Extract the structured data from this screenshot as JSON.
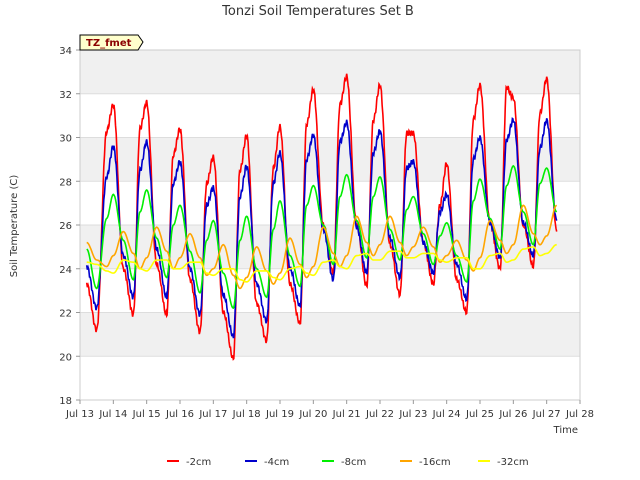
{
  "chart_data": {
    "type": "line",
    "title": "Tonzi Soil Temperatures Set B",
    "xlabel": "Time",
    "ylabel": "Soil Temperature (C)",
    "badge": "TZ_fmet",
    "ylim": [
      18,
      34
    ],
    "xlim": [
      13,
      28
    ],
    "yticks": [
      18,
      20,
      22,
      24,
      26,
      28,
      30,
      32,
      34
    ],
    "xticks": [
      {
        "value": 13,
        "label": "Jul 13"
      },
      {
        "value": 14,
        "label": "Jul 14"
      },
      {
        "value": 15,
        "label": "Jul 15"
      },
      {
        "value": 16,
        "label": "Jul 16"
      },
      {
        "value": 17,
        "label": "Jul 17"
      },
      {
        "value": 18,
        "label": "Jul 18"
      },
      {
        "value": 19,
        "label": "Jul 19"
      },
      {
        "value": 20,
        "label": "Jul 20"
      },
      {
        "value": 21,
        "label": "Jul 21"
      },
      {
        "value": 22,
        "label": "Jul 22"
      },
      {
        "value": 23,
        "label": "Jul 23"
      },
      {
        "value": 24,
        "label": "Jul 24"
      },
      {
        "value": 25,
        "label": "Jul 25"
      },
      {
        "value": 26,
        "label": "Jul 26"
      },
      {
        "value": 27,
        "label": "Jul 27"
      },
      {
        "value": 28,
        "label": "Jul 28"
      }
    ],
    "grid": true,
    "legend_position": "bottom",
    "series": [
      {
        "name": "-2cm",
        "color": "#ff0000",
        "phase": 0.62,
        "x": [
          13.2,
          13.5,
          13.8,
          14.0,
          14.3,
          14.6,
          14.8,
          15.0,
          15.3,
          15.6,
          15.8,
          16.0,
          16.3,
          16.6,
          16.8,
          17.0,
          17.3,
          17.6,
          17.8,
          18.0,
          18.3,
          18.6,
          18.8,
          19.0,
          19.3,
          19.6,
          19.8,
          20.0,
          20.3,
          20.6,
          20.8,
          21.0,
          21.3,
          21.6,
          21.8,
          22.0,
          22.3,
          22.6,
          22.8,
          23.0,
          23.3,
          23.6,
          23.8,
          24.0,
          24.3,
          24.6,
          24.8,
          25.0,
          25.3,
          25.6,
          25.8,
          26.0,
          26.3,
          26.6,
          26.8,
          27.0,
          27.3
        ],
        "y": [
          23.3,
          21.2,
          30.3,
          31.5,
          24.0,
          21.9,
          30.4,
          31.6,
          24.2,
          21.9,
          29.2,
          30.4,
          23.5,
          21.1,
          27.9,
          29.1,
          22.0,
          19.9,
          28.5,
          30.1,
          22.4,
          20.7,
          28.6,
          30.5,
          23.3,
          21.5,
          30.6,
          32.2,
          26.0,
          23.8,
          31.5,
          32.8,
          26.0,
          23.2,
          30.8,
          32.4,
          25.1,
          22.8,
          30.2,
          30.2,
          25.2,
          23.3,
          26.9,
          28.8,
          23.5,
          22.0,
          30.8,
          32.4,
          26.1,
          24.0,
          32.3,
          31.8,
          26.0,
          24.1,
          31.1,
          32.7,
          25.7
        ]
      },
      {
        "name": "-4cm",
        "color": "#0000cc",
        "phase": 0.68,
        "x": [
          13.2,
          13.5,
          13.8,
          14.0,
          14.3,
          14.6,
          14.8,
          15.0,
          15.3,
          15.6,
          15.8,
          16.0,
          16.3,
          16.6,
          16.8,
          17.0,
          17.3,
          17.6,
          17.8,
          18.0,
          18.3,
          18.6,
          18.8,
          19.0,
          19.3,
          19.6,
          19.8,
          20.0,
          20.3,
          20.6,
          20.8,
          21.0,
          21.3,
          21.6,
          21.8,
          22.0,
          22.3,
          22.6,
          22.8,
          23.0,
          23.3,
          23.6,
          23.8,
          24.0,
          24.3,
          24.6,
          24.8,
          25.0,
          25.3,
          25.6,
          25.8,
          26.0,
          26.3,
          26.6,
          26.8,
          27.0,
          27.3
        ],
        "y": [
          24.1,
          22.2,
          28.2,
          29.6,
          24.6,
          22.7,
          28.5,
          29.8,
          24.9,
          22.7,
          27.9,
          28.9,
          24.0,
          21.9,
          26.9,
          27.7,
          22.8,
          20.9,
          27.3,
          28.7,
          23.3,
          21.6,
          27.9,
          29.3,
          24.0,
          22.3,
          29.0,
          30.1,
          25.8,
          23.5,
          29.8,
          30.7,
          25.9,
          23.8,
          29.3,
          30.3,
          25.4,
          23.6,
          28.6,
          28.9,
          25.2,
          23.8,
          26.6,
          27.4,
          24.2,
          22.6,
          29.0,
          30.0,
          26.1,
          24.5,
          29.9,
          30.8,
          26.1,
          24.6,
          29.5,
          30.8,
          26.2
        ]
      },
      {
        "name": "-8cm",
        "color": "#00ee00",
        "phase": 0.78,
        "x": [
          13.2,
          13.5,
          13.8,
          14.0,
          14.3,
          14.6,
          14.8,
          15.0,
          15.3,
          15.6,
          15.8,
          16.0,
          16.3,
          16.6,
          16.8,
          17.0,
          17.3,
          17.6,
          17.8,
          18.0,
          18.3,
          18.6,
          18.8,
          19.0,
          19.3,
          19.6,
          19.8,
          20.0,
          20.3,
          20.6,
          20.8,
          21.0,
          21.3,
          21.6,
          21.8,
          22.0,
          22.3,
          22.6,
          22.8,
          23.0,
          23.3,
          23.6,
          23.8,
          24.0,
          24.3,
          24.6,
          24.8,
          25.0,
          25.3,
          25.6,
          25.8,
          26.0,
          26.3,
          26.6,
          26.8,
          27.0,
          27.3
        ],
        "y": [
          24.9,
          23.1,
          26.3,
          27.4,
          25.3,
          23.5,
          26.6,
          27.6,
          25.4,
          23.6,
          26.0,
          26.9,
          24.8,
          22.9,
          25.3,
          26.2,
          23.8,
          22.2,
          25.3,
          26.4,
          24.0,
          22.7,
          25.8,
          27.1,
          24.6,
          23.2,
          26.9,
          27.8,
          26.0,
          24.2,
          27.3,
          28.3,
          26.2,
          24.5,
          27.3,
          28.2,
          25.8,
          24.4,
          26.7,
          27.3,
          25.6,
          24.2,
          25.5,
          26.1,
          24.6,
          23.4,
          27.1,
          28.1,
          26.3,
          24.9,
          27.8,
          28.7,
          26.6,
          25.1,
          27.9,
          28.6,
          26.6
        ]
      },
      {
        "name": "-16cm",
        "color": "#ffa500",
        "phase": 0.9,
        "x": [
          13.2,
          13.5,
          13.8,
          14.0,
          14.3,
          14.6,
          14.8,
          15.0,
          15.3,
          15.6,
          15.8,
          16.0,
          16.3,
          16.6,
          16.8,
          17.0,
          17.3,
          17.6,
          17.8,
          18.0,
          18.3,
          18.6,
          18.8,
          19.0,
          19.3,
          19.6,
          19.8,
          20.0,
          20.3,
          20.6,
          20.8,
          21.0,
          21.3,
          21.6,
          21.8,
          22.0,
          22.3,
          22.6,
          22.8,
          23.0,
          23.3,
          23.6,
          23.8,
          24.0,
          24.3,
          24.6,
          24.8,
          25.0,
          25.3,
          25.6,
          25.8,
          26.0,
          26.3,
          26.6,
          26.8,
          27.0,
          27.3
        ],
        "y": [
          25.2,
          24.4,
          24.1,
          24.6,
          25.7,
          24.7,
          24.0,
          24.5,
          25.9,
          24.8,
          24.0,
          24.5,
          25.6,
          24.5,
          23.7,
          24.0,
          25.1,
          23.7,
          23.1,
          23.6,
          25.0,
          23.9,
          23.3,
          23.8,
          25.4,
          24.2,
          23.6,
          24.1,
          25.9,
          24.7,
          24.1,
          24.6,
          26.4,
          25.2,
          24.6,
          25.1,
          26.4,
          25.2,
          24.6,
          25.0,
          25.9,
          25.0,
          24.3,
          24.6,
          25.3,
          24.4,
          23.9,
          24.5,
          26.2,
          25.3,
          24.7,
          25.1,
          26.9,
          25.6,
          25.1,
          25.5,
          26.9
        ]
      },
      {
        "name": "-32cm",
        "color": "#ffff00",
        "phase": 1.05,
        "x": [
          13.2,
          13.5,
          13.8,
          14.0,
          14.3,
          14.6,
          14.8,
          15.0,
          15.3,
          15.6,
          15.8,
          16.0,
          16.3,
          16.6,
          16.8,
          17.0,
          17.3,
          17.6,
          17.8,
          18.0,
          18.3,
          18.6,
          18.8,
          19.0,
          19.3,
          19.6,
          19.8,
          20.0,
          20.3,
          20.6,
          20.8,
          21.0,
          21.3,
          21.6,
          21.8,
          22.0,
          22.3,
          22.6,
          22.8,
          23.0,
          23.3,
          23.6,
          23.8,
          24.0,
          24.3,
          24.6,
          24.8,
          25.0,
          25.3,
          25.6,
          25.8,
          26.0,
          26.3,
          26.6,
          26.8,
          27.0,
          27.3
        ],
        "y": [
          24.3,
          24.2,
          23.9,
          23.8,
          24.4,
          24.3,
          24.0,
          23.9,
          24.4,
          24.4,
          24.0,
          24.0,
          24.3,
          24.3,
          23.8,
          23.7,
          24.0,
          24.0,
          23.5,
          23.4,
          23.9,
          23.9,
          23.6,
          23.5,
          24.0,
          24.1,
          23.8,
          23.7,
          24.3,
          24.4,
          24.1,
          24.0,
          24.6,
          24.7,
          24.4,
          24.4,
          24.8,
          24.8,
          24.5,
          24.5,
          24.7,
          24.7,
          24.4,
          24.3,
          24.5,
          24.5,
          24.0,
          24.0,
          24.6,
          24.7,
          24.3,
          24.4,
          24.9,
          25.0,
          24.6,
          24.7,
          25.1
        ]
      }
    ]
  }
}
